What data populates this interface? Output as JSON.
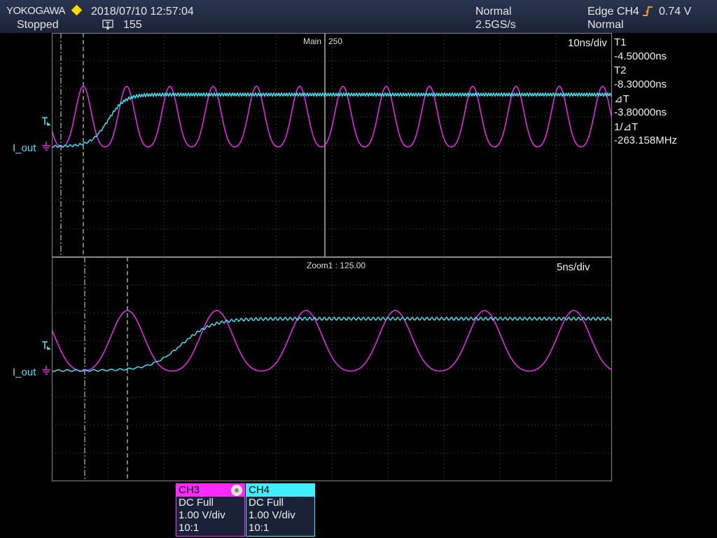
{
  "header": {
    "brand": "YOKOGAWA",
    "datetime": "2018/07/10 12:57:04",
    "run_state": "Stopped",
    "trigger_count": "155",
    "acq_mode": "Normal",
    "sample_rate": "2.5GS/s",
    "trigger_type": "Edge CH4",
    "trigger_level": "0.74 V",
    "trigger_mode": "Normal"
  },
  "main": {
    "label": "Main : 250",
    "timebase": "10ns/div",
    "channel_label": "I_out"
  },
  "zoom": {
    "label": "Zoom1 : 125.00",
    "timebase": "5ns/div",
    "channel_label": "I_out"
  },
  "cursors": {
    "t1_label": "T1",
    "t1_value": "-4.50000ns",
    "t2_label": "T2",
    "t2_value": "-8.30000ns",
    "dt_label": "⊿T",
    "dt_value": "-3.80000ns",
    "inv_label": "1/⊿T",
    "inv_value": "-263.158MHz"
  },
  "channels": [
    {
      "name": "CH3",
      "coupling": "DC Full",
      "scale": "1.00 V/div",
      "probe": "10:1",
      "color": "#ff28ff"
    },
    {
      "name": "CH4",
      "coupling": "DC Full",
      "scale": "1.00 V/div",
      "probe": "10:1",
      "color": "#3fefff"
    }
  ],
  "colors": {
    "ch3": "#ff28ff",
    "ch4": "#3fefff",
    "grid": "#3a3a3a",
    "trigger_marker": "#ffd800"
  }
}
